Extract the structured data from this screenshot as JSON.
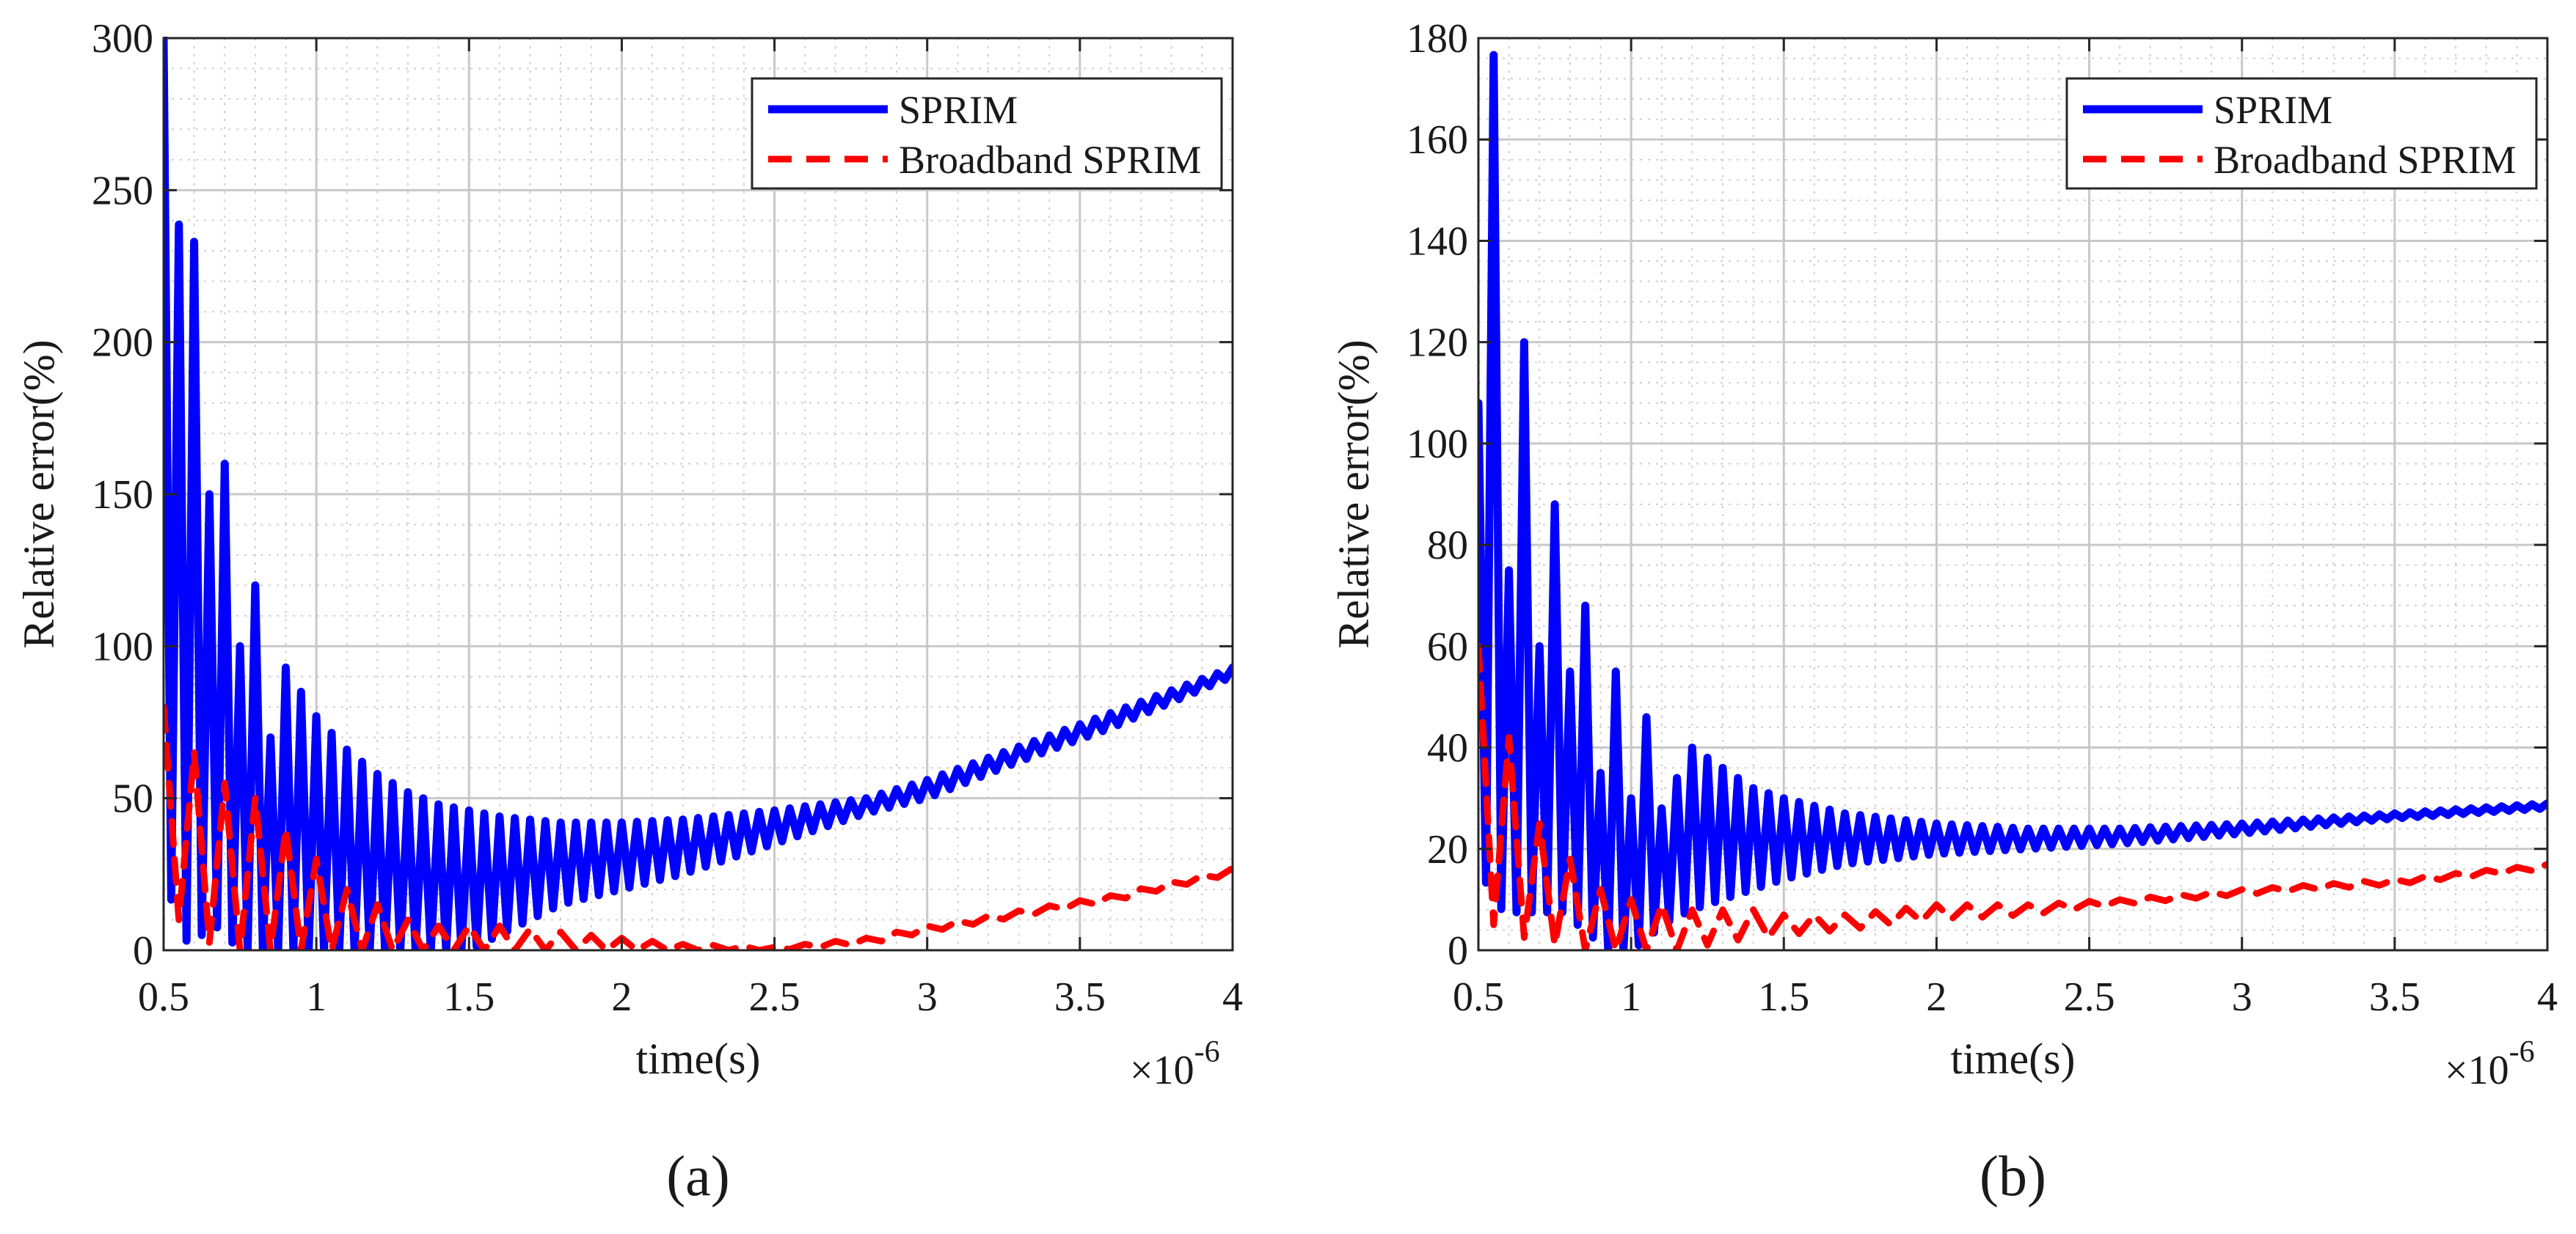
{
  "chart_data": [
    {
      "type": "line",
      "panel_label": "(a)",
      "xlabel": "time(s)",
      "ylabel": "Relative error(%)",
      "x_multiplier": "×10",
      "x_exponent": "-6",
      "xlim": [
        0.5,
        4.0
      ],
      "ylim": [
        0,
        300
      ],
      "xticks": [
        0.5,
        1,
        1.5,
        2,
        2.5,
        3,
        3.5,
        4
      ],
      "yticks": [
        0,
        50,
        100,
        150,
        200,
        250,
        300
      ],
      "grid": "on (major and minor)",
      "legend": "top-right",
      "series": [
        {
          "name": "SPRIM",
          "color": "#0000ff",
          "style": "solid",
          "envelope": {
            "x": [
              0.5,
              0.53,
              0.56,
              0.6,
              0.65,
              0.7,
              0.75,
              0.8,
              0.85,
              0.9,
              1.0,
              1.1,
              1.2,
              1.3,
              1.4,
              1.5,
              1.6,
              1.8,
              2.0,
              2.2,
              2.5,
              2.8,
              3.0,
              3.3,
              3.6,
              4.0
            ],
            "upper": [
              300,
              250,
              233,
              233,
              150,
              160,
              100,
              120,
              70,
              93,
              77,
              66,
              58,
              52,
              48,
              46,
              44,
              42,
              42,
              43,
              46,
              50,
              56,
              67,
              78,
              93
            ],
            "lower": [
              0,
              20,
              5,
              0,
              10,
              5,
              0,
              0,
              0,
              0,
              0,
              0,
              0,
              0,
              0,
              0,
              5,
              15,
              20,
              25,
              35,
              45,
              50,
              62,
              73,
              90
            ]
          },
          "period_x": 0.05
        },
        {
          "name": "Broadband SPRIM",
          "color": "#ff0000",
          "style": "dashed",
          "envelope": {
            "x": [
              0.5,
              0.55,
              0.6,
              0.7,
              0.8,
              0.9,
              1.0,
              1.1,
              1.2,
              1.3,
              1.4,
              1.5,
              1.6,
              1.8,
              2.0,
              2.2,
              2.5,
              2.8,
              3.0,
              3.3,
              3.6,
              4.0
            ],
            "upper": [
              80,
              93,
              65,
              55,
              50,
              40,
              30,
              20,
              15,
              10,
              8,
              8,
              8,
              6,
              4,
              2,
              1,
              4,
              8,
              13,
              18,
              27
            ],
            "lower": [
              5,
              10,
              5,
              0,
              0,
              0,
              0,
              0,
              0,
              0,
              0,
              0,
              0,
              0,
              0,
              0,
              0,
              2,
              6,
              11,
              16,
              25
            ]
          },
          "period_x": 0.1
        }
      ]
    },
    {
      "type": "line",
      "panel_label": "(b)",
      "xlabel": "time(s)",
      "ylabel": "Relative error(%)",
      "x_multiplier": "×10",
      "x_exponent": "-6",
      "xlim": [
        0.5,
        4.0
      ],
      "ylim": [
        0,
        180
      ],
      "xticks": [
        0.5,
        1,
        1.5,
        2,
        2.5,
        3,
        3.5,
        4
      ],
      "yticks": [
        0,
        20,
        40,
        60,
        80,
        100,
        120,
        140,
        160,
        180
      ],
      "grid": "on (major and minor)",
      "legend": "top-right",
      "series": [
        {
          "name": "SPRIM",
          "color": "#0000ff",
          "style": "solid",
          "envelope": {
            "x": [
              0.5,
              0.53,
              0.56,
              0.6,
              0.65,
              0.7,
              0.75,
              0.8,
              0.85,
              0.9,
              0.95,
              1.0,
              1.05,
              1.1,
              1.2,
              1.3,
              1.4,
              1.5,
              1.7,
              2.0,
              2.3,
              2.6,
              3.0,
              3.5,
              4.0
            ],
            "upper": [
              108,
              170,
              180,
              75,
              120,
              60,
              88,
              55,
              68,
              35,
              55,
              30,
              46,
              28,
              40,
              36,
              32,
              30,
              27,
              25,
              24,
              24,
              25,
              27,
              29
            ],
            "lower": [
              5,
              15,
              10,
              5,
              10,
              5,
              10,
              5,
              5,
              0,
              0,
              0,
              2,
              5,
              8,
              10,
              12,
              14,
              17,
              19,
              20,
              21,
              23,
              26,
              28
            ]
          },
          "period_x": 0.05
        },
        {
          "name": "Broadband SPRIM",
          "color": "#ff0000",
          "style": "dashed",
          "envelope": {
            "x": [
              0.5,
              0.53,
              0.56,
              0.6,
              0.7,
              0.8,
              0.9,
              1.0,
              1.1,
              1.2,
              1.3,
              1.4,
              1.5,
              1.7,
              2.0,
              2.3,
              2.6,
              3.0,
              3.5,
              4.0
            ],
            "upper": [
              60,
              50,
              55,
              42,
              25,
              18,
              12,
              10,
              9,
              8,
              8,
              8,
              7,
              7,
              9,
              9,
              10,
              12,
              14,
              17
            ],
            "lower": [
              2,
              5,
              5,
              3,
              2,
              0,
              0,
              0,
              0,
              0,
              2,
              2,
              3,
              4,
              6,
              7,
              9,
              11,
              13,
              16
            ]
          },
          "period_x": 0.1
        }
      ]
    }
  ]
}
